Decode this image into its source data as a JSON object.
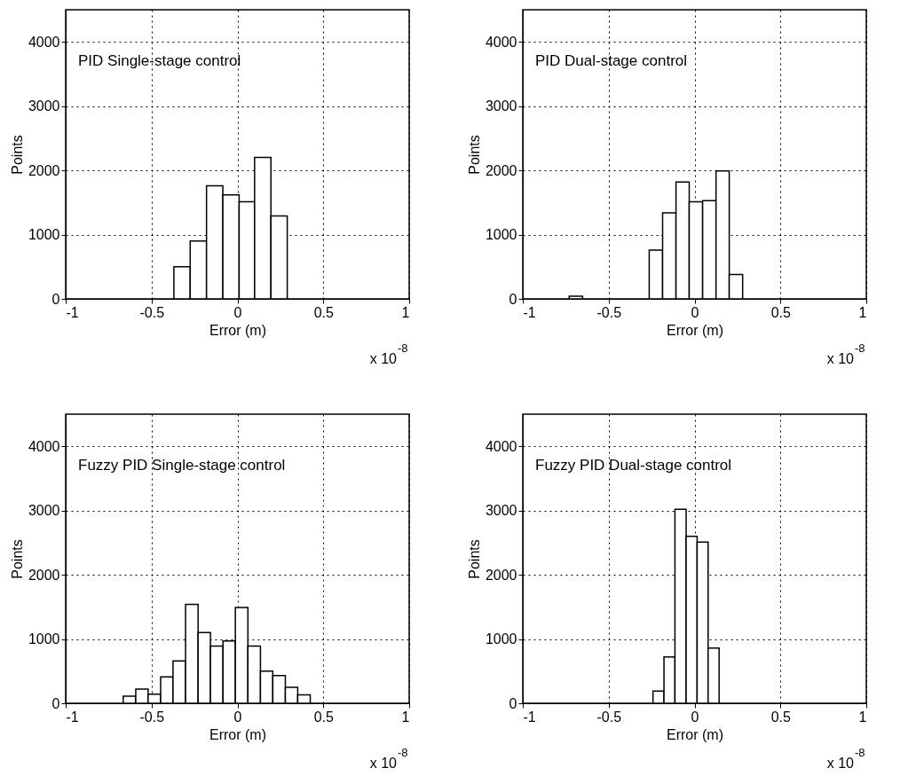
{
  "chart_data": [
    {
      "type": "histogram",
      "title": "PID Single-stage control",
      "xlabel": "Error (m)",
      "ylabel": "Points",
      "annotations": [
        "x 10$^{-8}$"
      ],
      "bins": [
        -0.37,
        -0.275,
        -0.18,
        -0.085,
        0.01,
        0.1,
        0.195,
        0.29
      ],
      "values": [
        500,
        900,
        1760,
        1620,
        1510,
        2200,
        1290
      ],
      "color": "#ffffff",
      "xlim": [
        -1,
        1
      ],
      "xticks": [
        -1,
        -0.5,
        0,
        0.5,
        1
      ],
      "ylim": [
        0,
        4500
      ],
      "yticks": [
        0,
        1000,
        2000,
        3000,
        4000
      ],
      "grid": true
    },
    {
      "type": "histogram",
      "title": "PID Dual-stage control",
      "xlabel": "Error (m)",
      "ylabel": "Points",
      "annotations": [
        "x 10$^{-8}$"
      ],
      "bins": [
        -0.73,
        -0.652,
        -0.575,
        -0.497,
        -0.419,
        -0.342,
        -0.264,
        -0.186,
        -0.108,
        -0.031,
        0.047,
        0.125,
        0.202,
        0.28
      ],
      "values": [
        40,
        0,
        0,
        0,
        0,
        0,
        760,
        1340,
        1820,
        1510,
        1530,
        1990,
        380
      ],
      "color": "#ffffff",
      "xlim": [
        -1,
        1
      ],
      "xticks": [
        -1,
        -0.5,
        0,
        0.5,
        1
      ],
      "ylim": [
        0,
        4500
      ],
      "yticks": [
        0,
        1000,
        2000,
        3000,
        4000
      ],
      "grid": true
    },
    {
      "type": "histogram",
      "title": "Fuzzy PID Single-stage control",
      "xlabel": "Error (m)",
      "ylabel": "Points",
      "annotations": [
        "x 10$^{-8}$"
      ],
      "bins": [
        -0.665,
        -0.592,
        -0.52,
        -0.447,
        -0.375,
        -0.302,
        -0.229,
        -0.157,
        -0.084,
        -0.012,
        0.061,
        0.134,
        0.206,
        0.279,
        0.351,
        0.424
      ],
      "values": [
        110,
        220,
        140,
        410,
        660,
        1540,
        1100,
        890,
        970,
        1490,
        890,
        500,
        430,
        250,
        130
      ],
      "color": "#ffffff",
      "xlim": [
        -1,
        1
      ],
      "xticks": [
        -1,
        -0.5,
        0,
        0.5,
        1
      ],
      "ylim": [
        0,
        4500
      ],
      "yticks": [
        0,
        1000,
        2000,
        3000,
        4000
      ],
      "grid": true
    },
    {
      "type": "histogram",
      "title": "Fuzzy PID Dual-stage control",
      "xlabel": "Error (m)",
      "ylabel": "Points",
      "annotations": [
        "x 10$^{-8}$"
      ],
      "bins": [
        -0.242,
        -0.178,
        -0.114,
        -0.049,
        0.015,
        0.079,
        0.143
      ],
      "values": [
        190,
        720,
        3020,
        2600,
        2510,
        860
      ],
      "color": "#ffffff",
      "xlim": [
        -1,
        1
      ],
      "xticks": [
        -1,
        -0.5,
        0,
        0.5,
        1
      ],
      "ylim": [
        0,
        4500
      ],
      "yticks": [
        0,
        1000,
        2000,
        3000,
        4000
      ],
      "grid": true
    }
  ]
}
